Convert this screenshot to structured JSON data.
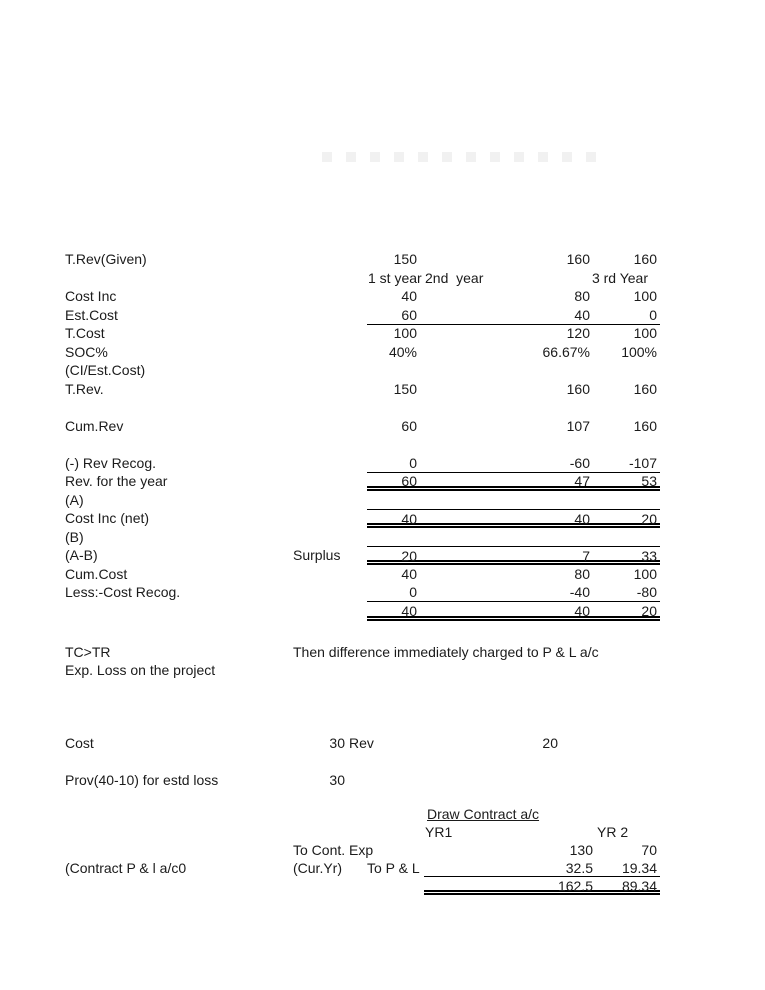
{
  "decor": {
    "watermark_square_count": 12
  },
  "year_headers": {
    "first": "1 st year",
    "second": "2nd  year",
    "third": "3 rd Year"
  },
  "main_table": {
    "rows": [
      {
        "label": "T.Rev(Given)",
        "values": [
          "150",
          "160",
          "160"
        ]
      },
      {
        "type": "year_header"
      },
      {
        "label": "Cost Inc",
        "values": [
          "40",
          "80",
          "100"
        ]
      },
      {
        "label": "Est.Cost",
        "values": [
          "60",
          "40",
          "0"
        ],
        "rule_below": "single"
      },
      {
        "label": "T.Cost",
        "values": [
          "100",
          "120",
          "100"
        ]
      },
      {
        "label": "SOC%",
        "values": [
          "40%",
          "66.67%",
          "100%"
        ]
      },
      {
        "label": "(CI/Est.Cost)",
        "values": []
      },
      {
        "label": "T.Rev.",
        "values": [
          "150",
          "160",
          "160"
        ]
      },
      {
        "type": "blank"
      },
      {
        "label": "Cum.Rev",
        "values": [
          "60",
          "107",
          "160"
        ]
      },
      {
        "type": "blank"
      },
      {
        "label": "(-) Rev Recog.",
        "values": [
          "0",
          "-60",
          "-107"
        ],
        "rule_below": "single"
      },
      {
        "label": "Rev. for the year",
        "values": [
          "60",
          "47",
          "53"
        ],
        "rule_below": "double"
      },
      {
        "label": "(A)",
        "values": []
      },
      {
        "label": "Cost Inc (net)",
        "values": [
          "40",
          "40",
          "20"
        ],
        "rule_above": "single",
        "rule_below": "double"
      },
      {
        "label": "(B)",
        "values": []
      },
      {
        "label": "(A-B)",
        "mid": "Surplus",
        "values": [
          "20",
          "7",
          "33"
        ],
        "rule_above": "single",
        "rule_below": "double"
      },
      {
        "label": "Cum.Cost",
        "values": [
          "40",
          "80",
          "100"
        ]
      },
      {
        "label": "Less:-Cost Recog.",
        "values": [
          "0",
          "-40",
          "-80"
        ],
        "rule_below": "single"
      },
      {
        "label": "",
        "values": [
          "40",
          "40",
          "20"
        ],
        "rule_below": "double"
      }
    ]
  },
  "notes": {
    "condition": "TC>TR",
    "consequence": "Then difference immediately charged to P & L a/c",
    "loss_line": "Exp. Loss on the project"
  },
  "loss_account": {
    "cost_label": "Cost",
    "cost_value": "30",
    "rev_label": "Rev",
    "rev_value": "20",
    "provision_label": "Prov(40-10) for estd loss",
    "provision_value": "30"
  },
  "contract_account": {
    "title": "Draw Contract a/c",
    "col1_header": "YR1",
    "col2_header": "YR 2",
    "rows": [
      {
        "mid": "To Cont. Exp",
        "values": [
          "130",
          "70"
        ]
      },
      {
        "label": "(Contract P & l a/c0",
        "mid": "(Cur.Yr)",
        "mid2": "To P & L",
        "values": [
          "32.5",
          "19.34"
        ],
        "rule_below": "single"
      },
      {
        "values": [
          "162.5",
          "89.34"
        ],
        "rule_below": "double"
      }
    ]
  }
}
